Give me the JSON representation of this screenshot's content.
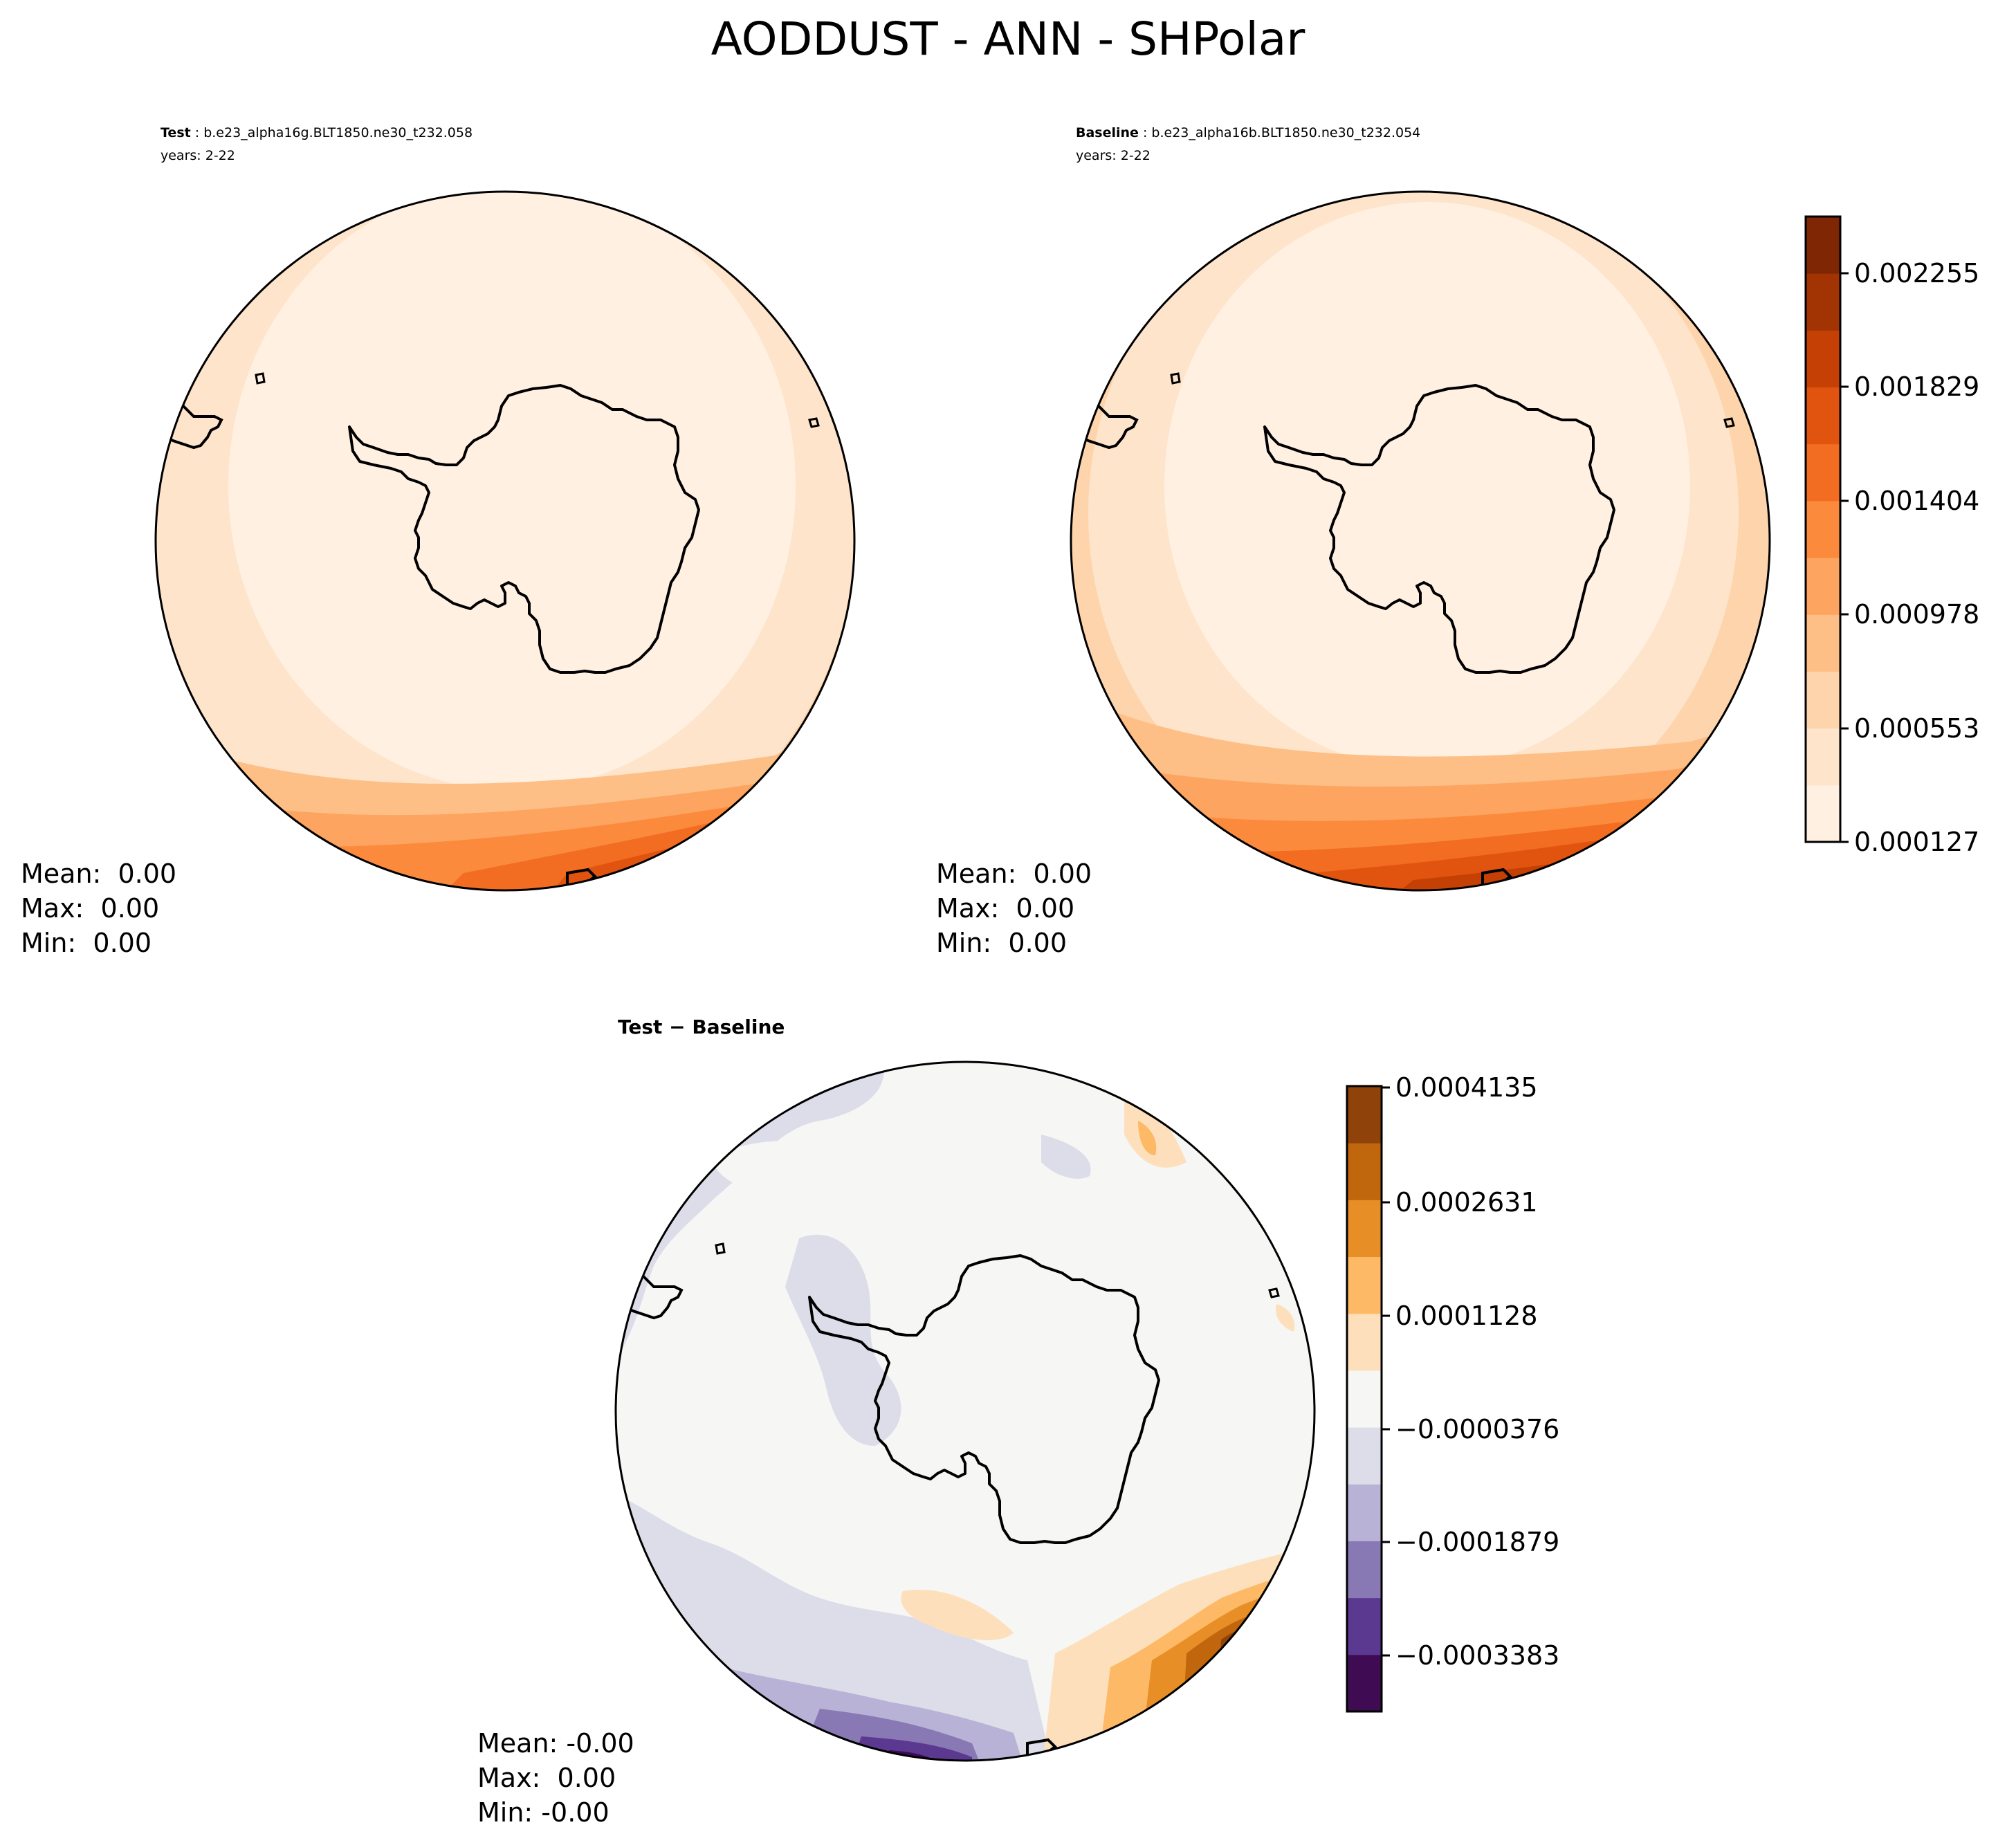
{
  "figure": {
    "title": "AODDUST - ANN - SHPolar"
  },
  "panels": {
    "test": {
      "case_label": "Test",
      "case_name": "b.e23_alpha16g.BLT1850.ne30_t232.058",
      "years": "years: 2-22",
      "stats": {
        "mean": "Mean:  0.00",
        "max": "Max:  0.00",
        "min": "Min:  0.00"
      }
    },
    "baseline": {
      "case_label": "Baseline",
      "case_name": "b.e23_alpha16b.BLT1850.ne30_t232.054",
      "years": "years: 2-22",
      "stats": {
        "mean": "Mean:  0.00",
        "max": "Max:  0.00",
        "min": "Min:  0.00"
      }
    },
    "difference": {
      "title": "Test − Baseline",
      "stats": {
        "mean": "Mean: -0.00",
        "max": "Max:  0.00",
        "min": "Min: -0.00"
      }
    }
  },
  "colorbars": {
    "main": {
      "colormap": "Oranges",
      "ticks": [
        "0.000127",
        "0.000553",
        "0.000978",
        "0.001404",
        "0.001829",
        "0.002255"
      ],
      "colors": [
        "#fff0e2",
        "#fee4cb",
        "#fdd4ab",
        "#fdbf86",
        "#fda460",
        "#fb8a3d",
        "#f26d21",
        "#e05410",
        "#c54004",
        "#a23403",
        "#7f2704"
      ]
    },
    "diff": {
      "colormap": "PuOr_r",
      "ticks": [
        "0.0004135",
        "0.0002631",
        "0.0001128",
        "−0.0000376",
        "−0.0001879",
        "−0.0003383"
      ],
      "colors": [
        "#3f0c54",
        "#5c3990",
        "#8878b4",
        "#b8b2d6",
        "#dddde9",
        "#f6f6f5",
        "#fde0bb",
        "#fdb966",
        "#e78e27",
        "#c0660c",
        "#8f430b"
      ]
    }
  }
}
